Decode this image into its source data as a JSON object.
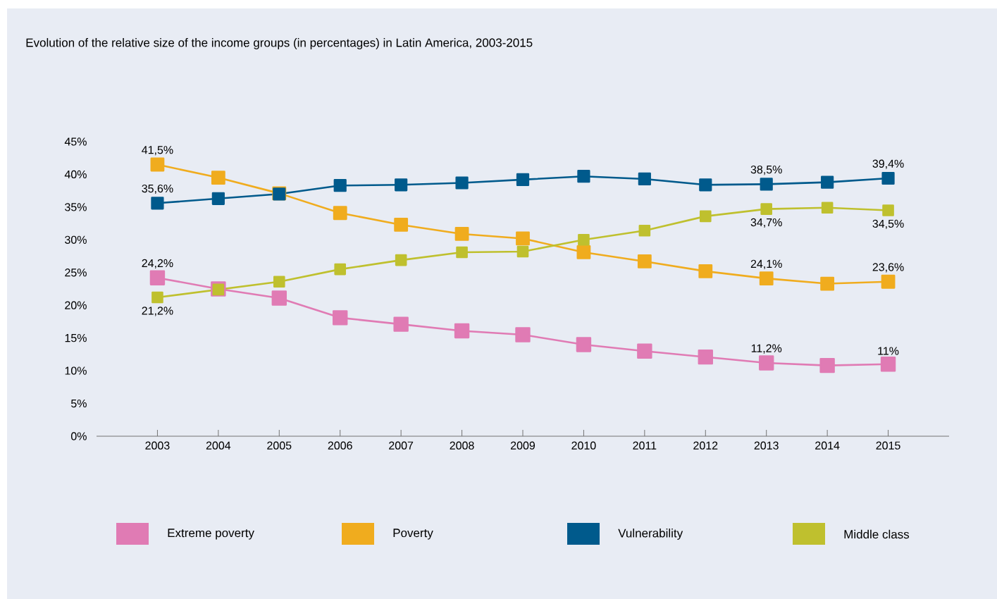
{
  "chart_data": {
    "type": "line",
    "title": "Evolution of the relative size of the income groups (in percentages) in Latin America, 2003-2015",
    "categories": [
      "2003",
      "2004",
      "2005",
      "2006",
      "2007",
      "2008",
      "2009",
      "2010",
      "2011",
      "2012",
      "2013",
      "2014",
      "2015"
    ],
    "ylim": [
      0,
      45
    ],
    "yticks": [
      {
        "value": 0,
        "label": "0%"
      },
      {
        "value": 5,
        "label": "5%"
      },
      {
        "value": 10,
        "label": "10%"
      },
      {
        "value": 15,
        "label": "15%"
      },
      {
        "value": 20,
        "label": "20%"
      },
      {
        "value": 25,
        "label": "25%"
      },
      {
        "value": 30,
        "label": "30%"
      },
      {
        "value": 35,
        "label": "35%"
      },
      {
        "value": 40,
        "label": "40%"
      },
      {
        "value": 45,
        "label": "45%"
      }
    ],
    "marker": "square",
    "line_style": "solid",
    "legend": "bottom",
    "series": [
      {
        "name": "Extreme poverty",
        "color": "#e07bb4",
        "values": [
          24.2,
          22.5,
          21.1,
          18.1,
          17.1,
          16.1,
          15.5,
          14.0,
          13.0,
          12.1,
          11.2,
          10.8,
          11
        ],
        "value_labels": [
          "24,2%",
          null,
          null,
          null,
          null,
          null,
          null,
          null,
          null,
          null,
          "11,2%",
          null,
          "11%"
        ]
      },
      {
        "name": "Poverty",
        "color": "#f0ac1e",
        "values": [
          41.5,
          39.5,
          37.1,
          34.1,
          32.3,
          30.9,
          30.2,
          28.1,
          26.7,
          25.2,
          24.1,
          23.3,
          23.6
        ],
        "value_labels": [
          "41,5%",
          null,
          null,
          null,
          null,
          null,
          null,
          null,
          null,
          null,
          "24,1%",
          null,
          "23,6%"
        ]
      },
      {
        "name": "Vulnerability",
        "color": "#005a8c",
        "values": [
          35.6,
          36.3,
          37.0,
          38.3,
          38.4,
          38.7,
          39.2,
          39.7,
          39.3,
          38.4,
          38.5,
          38.8,
          39.4
        ],
        "value_labels": [
          "35,6%",
          null,
          null,
          null,
          null,
          null,
          null,
          null,
          null,
          null,
          "38,5%",
          null,
          "39,4%"
        ]
      },
      {
        "name": "Middle class",
        "color": "#bfc02e",
        "values": [
          21.2,
          22.4,
          23.6,
          25.5,
          26.9,
          28.1,
          28.2,
          30.0,
          31.4,
          33.6,
          34.7,
          34.9,
          34.5
        ],
        "value_labels": [
          "21,2%",
          null,
          null,
          null,
          null,
          null,
          null,
          null,
          null,
          null,
          "34,7%",
          null,
          "34,5%"
        ]
      }
    ]
  }
}
